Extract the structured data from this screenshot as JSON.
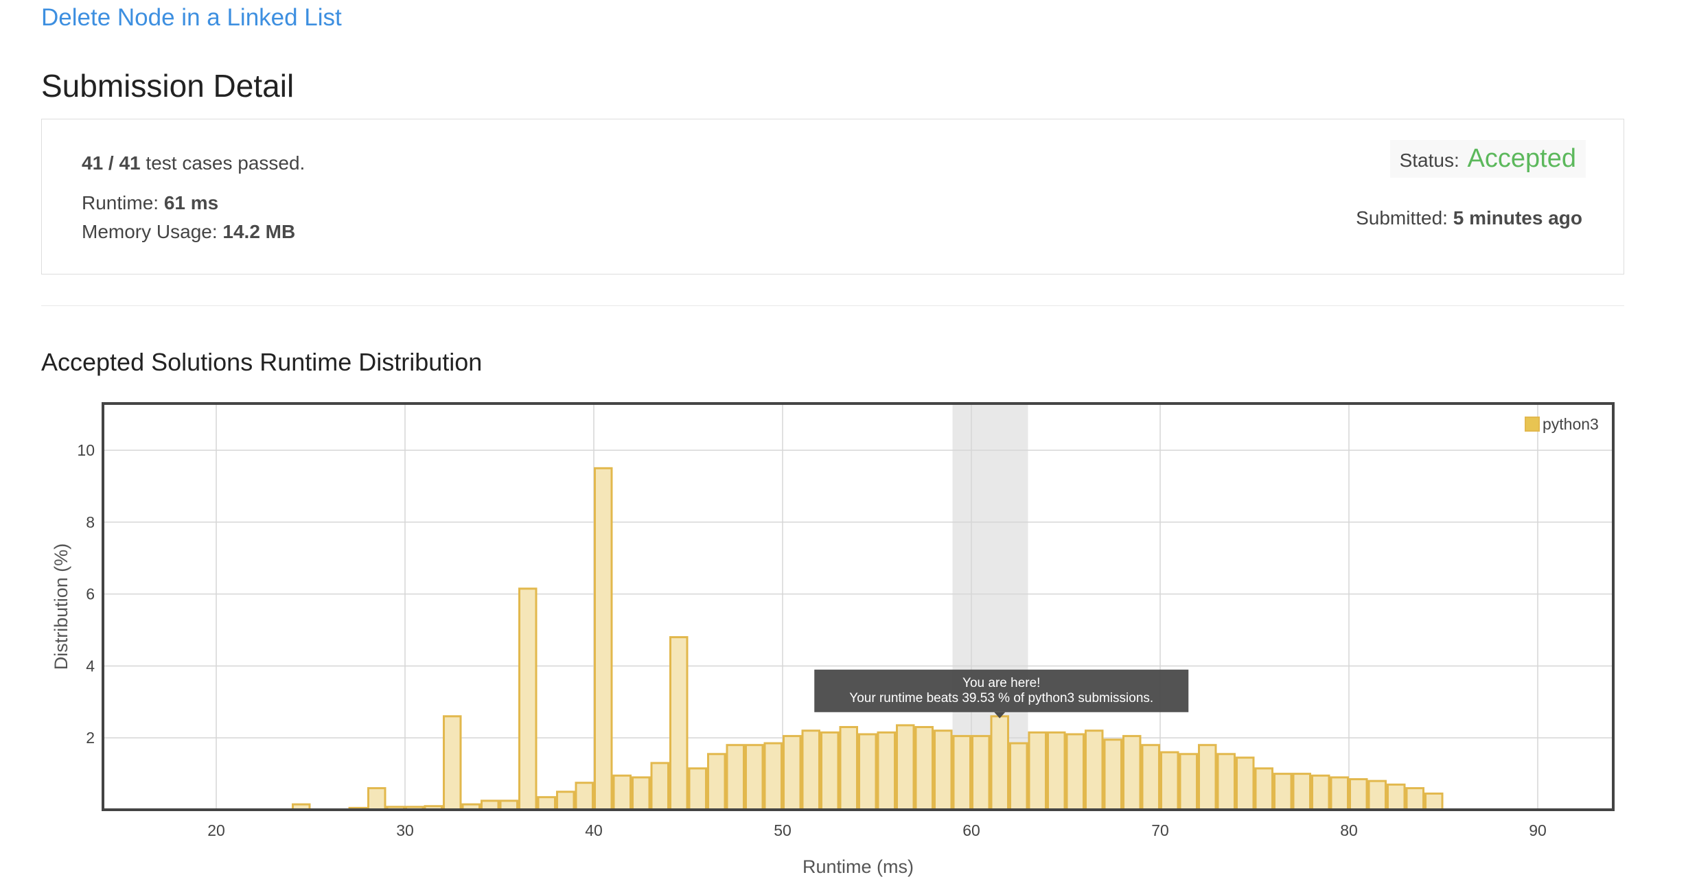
{
  "problem": {
    "title": "Delete Node in a Linked List"
  },
  "page": {
    "title": "Submission Detail"
  },
  "detail": {
    "cases_count": "41 / 41",
    "cases_suffix": "test cases passed.",
    "runtime_label": "Runtime:",
    "runtime_value": "61 ms",
    "memory_label": "Memory Usage:",
    "memory_value": "14.2 MB",
    "status_label": "Status:",
    "status_value": "Accepted",
    "submitted_label": "Submitted:",
    "submitted_value": "5 minutes ago"
  },
  "colors": {
    "link": "#3d8fe0",
    "accepted": "#5cb85c",
    "bar_fill": "#f5e6b8",
    "bar_stroke": "#e2b84d",
    "highlight_band": "#e8e8e8",
    "tooltip_bg": "#4a4a4a"
  },
  "chart_data": {
    "type": "bar",
    "title": "Accepted Solutions Runtime Distribution",
    "xlabel": "Runtime (ms)",
    "ylabel": "Distribution (%)",
    "xlim": [
      14,
      94
    ],
    "ylim": [
      0,
      11.3
    ],
    "xticks": [
      20,
      30,
      40,
      50,
      60,
      70,
      80,
      90
    ],
    "yticks": [
      2,
      4,
      6,
      8,
      10
    ],
    "grid": true,
    "legend_position": "top-right",
    "series": [
      {
        "name": "python3",
        "bin_width": 1,
        "x": [
          24,
          27,
          28,
          29,
          30,
          31,
          32,
          33,
          34,
          35,
          36,
          37,
          38,
          39,
          40,
          41,
          42,
          43,
          44,
          45,
          46,
          47,
          48,
          49,
          50,
          51,
          52,
          53,
          54,
          55,
          56,
          57,
          58,
          59,
          60,
          61,
          62,
          63,
          64,
          65,
          66,
          67,
          68,
          69,
          70,
          71,
          72,
          73,
          74,
          75,
          76,
          77,
          78,
          79,
          80,
          81,
          82,
          83,
          84
        ],
        "values": [
          0.15,
          0.05,
          0.6,
          0.08,
          0.08,
          0.1,
          2.6,
          0.15,
          0.25,
          0.25,
          6.15,
          0.35,
          0.5,
          0.75,
          9.5,
          0.95,
          0.9,
          1.3,
          4.8,
          1.15,
          1.55,
          1.8,
          1.8,
          1.85,
          2.05,
          2.2,
          2.15,
          2.3,
          2.1,
          2.15,
          2.35,
          2.3,
          2.2,
          2.05,
          2.05,
          2.6,
          1.85,
          2.15,
          2.15,
          2.1,
          2.2,
          1.95,
          2.05,
          1.8,
          1.6,
          1.55,
          1.8,
          1.55,
          1.45,
          1.15,
          1.0,
          1.0,
          0.95,
          0.9,
          0.85,
          0.8,
          0.7,
          0.6,
          0.45
        ]
      }
    ],
    "highlight": {
      "x_from": 59,
      "x_to": 63
    },
    "marker_x": 61,
    "tooltip": {
      "line1": "You are here!",
      "line2": "Your runtime beats 39.53 % of python3 submissions."
    }
  }
}
